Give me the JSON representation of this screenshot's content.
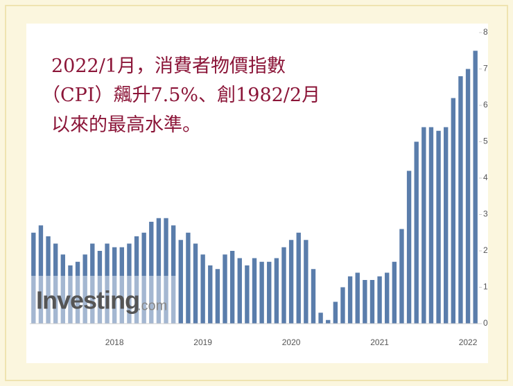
{
  "chart_data": {
    "type": "bar",
    "title": [
      "2022/1月，消費者物價指數",
      "（CPI）飆升7.5%、創1982/2月",
      "以來的最高水準。"
    ],
    "watermark": [
      "Investing",
      ".com"
    ],
    "color": "#5a7dab",
    "categories": [
      null,
      null,
      null,
      null,
      null,
      null,
      null,
      null,
      null,
      null,
      null,
      "2018",
      null,
      null,
      null,
      null,
      null,
      null,
      null,
      null,
      null,
      null,
      null,
      "2019",
      null,
      null,
      null,
      null,
      null,
      null,
      null,
      null,
      null,
      null,
      null,
      "2020",
      null,
      null,
      null,
      null,
      null,
      null,
      null,
      null,
      null,
      null,
      null,
      "2021",
      null,
      null,
      null,
      null,
      null,
      null,
      null,
      null,
      null,
      null,
      null,
      "2022",
      null
    ],
    "values": [
      2.5,
      2.7,
      2.4,
      2.2,
      1.9,
      1.6,
      1.7,
      1.9,
      2.2,
      2.0,
      2.2,
      2.1,
      2.1,
      2.2,
      2.4,
      2.5,
      2.8,
      2.9,
      2.9,
      2.7,
      2.3,
      2.5,
      2.2,
      1.9,
      1.6,
      1.5,
      1.9,
      2.0,
      1.8,
      1.6,
      1.8,
      1.7,
      1.7,
      1.8,
      2.1,
      2.3,
      2.5,
      2.3,
      1.5,
      0.3,
      0.1,
      0.6,
      1.0,
      1.3,
      1.4,
      1.2,
      1.2,
      1.3,
      1.4,
      1.7,
      2.6,
      4.2,
      5.0,
      5.4,
      5.4,
      5.3,
      5.4,
      6.2,
      6.8,
      7.0,
      7.5
    ],
    "ylim": [
      0,
      8
    ],
    "yticks": [
      0,
      1,
      2,
      3,
      4,
      5,
      6,
      7,
      8
    ]
  }
}
